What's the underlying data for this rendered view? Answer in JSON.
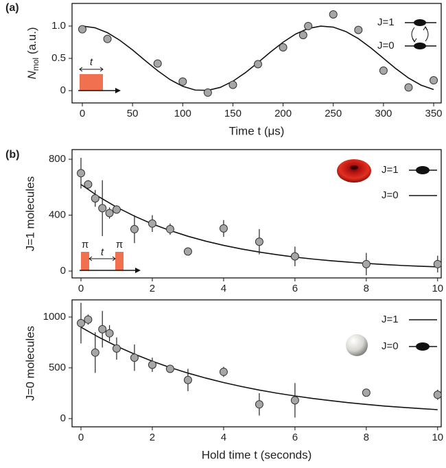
{
  "chart_data": [
    {
      "type": "scatter",
      "panel_label": "(a)",
      "y_label_parts": [
        "N",
        "mol",
        " (a.u.)"
      ],
      "x_label": "Time t (μs)",
      "x": [
        0,
        25,
        75,
        100,
        125,
        150,
        175,
        200,
        220,
        225,
        250,
        275,
        300,
        325,
        350
      ],
      "values": [
        0.95,
        0.8,
        0.42,
        0.14,
        -0.03,
        0.09,
        0.41,
        0.67,
        0.86,
        1.0,
        1.18,
        0.94,
        0.31,
        0.05,
        0.16
      ],
      "fit_x": [
        0,
        12.5,
        25,
        37.5,
        50,
        62.5,
        75,
        87.5,
        100,
        112.5,
        125,
        137.5,
        150,
        162.5,
        175,
        187.5,
        200,
        212.5,
        225,
        237.5,
        250,
        262.5,
        275,
        287.5,
        300,
        312.5,
        325,
        337.5,
        350
      ],
      "fit_values": [
        1.0,
        0.974,
        0.897,
        0.778,
        0.63,
        0.467,
        0.309,
        0.17,
        0.067,
        0.009,
        0.005,
        0.051,
        0.146,
        0.279,
        0.435,
        0.598,
        0.75,
        0.876,
        0.962,
        0.999,
        0.983,
        0.915,
        0.805,
        0.661,
        0.5,
        0.339,
        0.195,
        0.085,
        0.017
      ],
      "xlim": [
        -10.25,
        357.5
      ],
      "xticks": [
        0,
        50,
        100,
        150,
        200,
        250,
        300,
        350
      ],
      "ylim": [
        -0.19,
        1.35
      ],
      "yticks": [
        0,
        0.5,
        {
          "value": 1,
          "label": "1.0"
        }
      ],
      "level_labels": [
        "J=1",
        "J=0"
      ],
      "pulse_labels": [
        "t"
      ],
      "point_color": "#a6a6a6",
      "line_color": "#111111"
    },
    {
      "type": "scatter",
      "panel_label": "(b)",
      "y_label": "J=1 molecules",
      "x": [
        0,
        0.2,
        0.4,
        0.6,
        0.8,
        1.0,
        1.5,
        2,
        2.5,
        3,
        4,
        5,
        6,
        8,
        10
      ],
      "values": [
        700,
        620,
        520,
        450,
        415,
        440,
        300,
        340,
        300,
        140,
        305,
        210,
        105,
        50,
        50
      ],
      "errors": [
        110,
        30,
        60,
        200,
        40,
        30,
        100,
        60,
        40,
        0,
        60,
        90,
        70,
        80,
        60
      ],
      "fit_x": [
        0,
        0.5,
        1,
        1.5,
        2,
        2.5,
        3,
        3.5,
        4,
        4.5,
        5,
        5.5,
        6,
        6.5,
        7,
        7.5,
        8,
        8.5,
        9,
        9.5,
        10
      ],
      "fit_values": [
        620,
        532,
        457,
        393,
        337,
        290,
        249,
        214,
        184,
        158,
        136,
        117,
        100,
        86,
        74,
        64,
        55,
        47,
        40,
        35,
        30
      ],
      "xlim": [
        -0.25,
        10.1
      ],
      "xticks": [
        0,
        2,
        4,
        6,
        8,
        10
      ],
      "ylim": [
        -49,
        869
      ],
      "yticks": [
        0,
        400,
        800
      ],
      "level_labels": [
        "J=1",
        "J=0"
      ],
      "pulse_labels": [
        "π",
        "t",
        "π"
      ],
      "point_color": "#a6a6a6",
      "line_color": "#111111"
    },
    {
      "type": "scatter",
      "y_label": "J=0 molecules",
      "x_label": "Hold time t (seconds)",
      "x": [
        0,
        0.2,
        0.4,
        0.6,
        0.8,
        1.0,
        1.5,
        2,
        2.5,
        3,
        4,
        5,
        6,
        8,
        10
      ],
      "values": [
        940,
        975,
        650,
        880,
        840,
        690,
        600,
        530,
        490,
        380,
        460,
        140,
        180,
        255,
        235
      ],
      "errors": [
        200,
        50,
        200,
        180,
        80,
        110,
        130,
        70,
        30,
        110,
        50,
        110,
        170,
        0,
        50
      ],
      "fit_x": [
        0,
        0.5,
        1,
        1.5,
        2,
        2.5,
        3,
        3.5,
        4,
        4.5,
        5,
        5.5,
        6,
        6.5,
        7,
        7.5,
        8,
        8.5,
        9,
        9.5,
        10
      ],
      "fit_values": [
        900,
        801,
        713,
        635,
        565,
        503,
        448,
        399,
        355,
        316,
        281,
        250,
        223,
        198,
        177,
        157,
        140,
        124,
        111,
        99,
        88
      ],
      "xlim": [
        -0.25,
        10.1
      ],
      "xticks": [
        0,
        2,
        4,
        6,
        8,
        10
      ],
      "ylim": [
        -81,
        1169
      ],
      "yticks": [
        0,
        500,
        1000
      ],
      "level_labels": [
        "J=1",
        "J=0"
      ],
      "point_color": "#a6a6a6",
      "line_color": "#111111"
    }
  ]
}
